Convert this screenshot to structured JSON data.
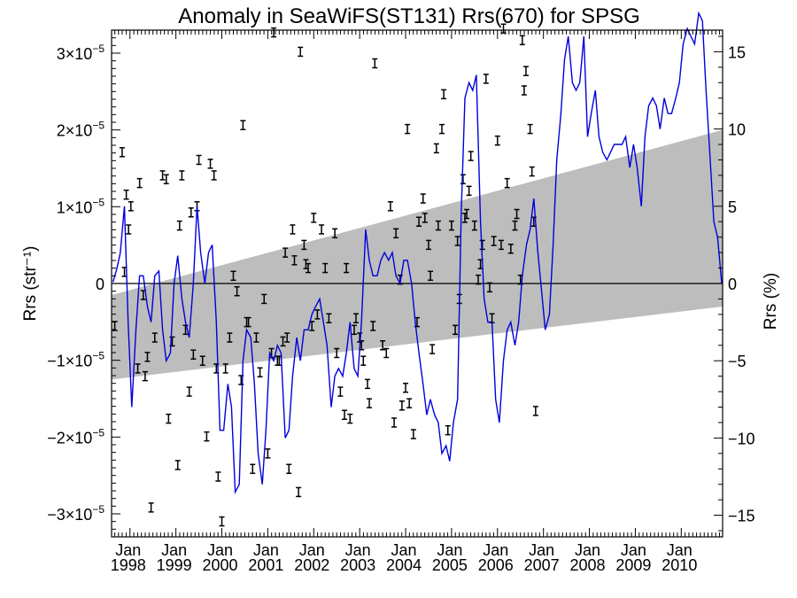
{
  "chart_data": {
    "type": "scatter",
    "title": "Anomaly in SeaWiFS(ST131) Rrs(670) for SPSG",
    "ylabel_left": "Rrs (str⁻¹)",
    "ylabel_right": "Rrs (%)",
    "xlim": [
      1997.6,
      2010.9
    ],
    "ylim": [
      -3.3e-05,
      3.3e-05
    ],
    "ylim_right": [
      -16.4,
      16.4
    ],
    "grid": false,
    "legend": "none",
    "x_tick_labels": [
      {
        "month": "Jan",
        "year": "1998"
      },
      {
        "month": "Jan",
        "year": "1999"
      },
      {
        "month": "Jan",
        "year": "2000"
      },
      {
        "month": "Jan",
        "year": "2001"
      },
      {
        "month": "Jan",
        "year": "2002"
      },
      {
        "month": "Jan",
        "year": "2003"
      },
      {
        "month": "Jan",
        "year": "2004"
      },
      {
        "month": "Jan",
        "year": "2005"
      },
      {
        "month": "Jan",
        "year": "2006"
      },
      {
        "month": "Jan",
        "year": "2007"
      },
      {
        "month": "Jan",
        "year": "2008"
      },
      {
        "month": "Jan",
        "year": "2009"
      },
      {
        "month": "Jan",
        "year": "2010"
      }
    ],
    "y_tick_labels_left": [
      {
        "value": 3e-05,
        "mant": "3×10",
        "exp": "−5"
      },
      {
        "value": 2e-05,
        "mant": "2×10",
        "exp": "−5"
      },
      {
        "value": 1e-05,
        "mant": "1×10",
        "exp": "−5"
      },
      {
        "value": 0,
        "mant": "0",
        "exp": ""
      },
      {
        "value": -1e-05,
        "mant": "−1×10",
        "exp": "−5"
      },
      {
        "value": -2e-05,
        "mant": "−2×10",
        "exp": "−5"
      },
      {
        "value": -3e-05,
        "mant": "−3×10",
        "exp": "−5"
      }
    ],
    "y_tick_labels_right": [
      "15",
      "10",
      "5",
      "0",
      "−5",
      "−10",
      "−15"
    ],
    "trend_band": {
      "x": [
        1997.6,
        2010.9
      ],
      "upper": [
        -1.5e-06,
        2e-05
      ],
      "lower": [
        -1.25e-05,
        -3e-06
      ]
    },
    "zero_line": 0,
    "series": [
      {
        "type": "line",
        "color": "#0000dd",
        "x": [
          1997.63,
          1997.71,
          1997.79,
          1997.88,
          1997.96,
          1998.04,
          1998.13,
          1998.21,
          1998.29,
          1998.38,
          1998.46,
          1998.54,
          1998.63,
          1998.71,
          1998.79,
          1998.88,
          1998.96,
          1999.04,
          1999.13,
          1999.21,
          1999.29,
          1999.38,
          1999.46,
          1999.54,
          1999.63,
          1999.71,
          1999.79,
          1999.88,
          1999.96,
          2000.04,
          2000.13,
          2000.21,
          2000.29,
          2000.38,
          2000.46,
          2000.54,
          2000.63,
          2000.71,
          2000.79,
          2000.88,
          2000.96,
          2001.04,
          2001.13,
          2001.21,
          2001.29,
          2001.38,
          2001.46,
          2001.54,
          2001.63,
          2001.71,
          2001.79,
          2001.88,
          2001.96,
          2002.04,
          2002.13,
          2002.21,
          2002.29,
          2002.38,
          2002.46,
          2002.54,
          2002.63,
          2002.71,
          2002.79,
          2002.88,
          2002.96,
          2003.04,
          2003.13,
          2003.21,
          2003.29,
          2003.38,
          2003.46,
          2003.54,
          2003.63,
          2003.71,
          2003.79,
          2003.88,
          2003.96,
          2004.04,
          2004.13,
          2004.21,
          2004.29,
          2004.38,
          2004.46,
          2004.54,
          2004.63,
          2004.71,
          2004.79,
          2004.88,
          2004.96,
          2005.04,
          2005.13,
          2005.21,
          2005.29,
          2005.38,
          2005.46,
          2005.54,
          2005.63,
          2005.71,
          2005.79,
          2005.88,
          2005.96,
          2006.04,
          2006.13,
          2006.21,
          2006.29,
          2006.38,
          2006.46,
          2006.54,
          2006.63,
          2006.71,
          2006.79,
          2006.88,
          2006.96,
          2007.04,
          2007.13,
          2007.21,
          2007.29,
          2007.38,
          2007.46,
          2007.54,
          2007.63,
          2007.71,
          2007.79,
          2007.88,
          2007.96,
          2008.04,
          2008.13,
          2008.21,
          2008.29,
          2008.38,
          2008.46,
          2008.54,
          2008.63,
          2008.71,
          2008.79,
          2008.88,
          2008.96,
          2009.04,
          2009.13,
          2009.21,
          2009.29,
          2009.38,
          2009.46,
          2009.54,
          2009.63,
          2009.71,
          2009.79,
          2009.88,
          2009.96,
          2010.04,
          2010.13,
          2010.21,
          2010.29,
          2010.38,
          2010.46,
          2010.54,
          2010.63,
          2010.71,
          2010.79,
          2010.88
        ],
        "y": [
          0.1,
          0.9,
          2.0,
          5.0,
          -2.5,
          -8.0,
          -3.0,
          0.5,
          0.5,
          -1.5,
          -2.5,
          0.5,
          0.8,
          -3.0,
          -5.0,
          -4.5,
          0.0,
          1.8,
          -1.0,
          -2.5,
          -3.5,
          0.0,
          5.0,
          2.0,
          0.0,
          2.0,
          2.5,
          -2.5,
          -9.5,
          -9.5,
          -6.5,
          -8.0,
          -13.5,
          -13.0,
          -5.0,
          -3.0,
          -3.5,
          -6.5,
          -11.0,
          -13.0,
          -9.5,
          -4.5,
          -5.0,
          -4.0,
          -4.5,
          -10.0,
          -9.5,
          -6.0,
          -3.5,
          -5.0,
          -3.0,
          -3.0,
          -2.0,
          -1.5,
          -1.0,
          -2.5,
          -4.0,
          -8.0,
          -6.0,
          -5.5,
          -6.0,
          -4.5,
          -2.5,
          -5.5,
          -6.0,
          -2.5,
          3.5,
          1.5,
          0.5,
          0.5,
          1.5,
          2.0,
          1.5,
          2.0,
          0.5,
          0.0,
          1.5,
          1.5,
          0.0,
          -2.5,
          -4.5,
          -6.5,
          -8.5,
          -7.5,
          -8.5,
          -9.0,
          -11.0,
          -10.5,
          -11.5,
          -9.0,
          -7.5,
          4.5,
          12.0,
          13.0,
          12.5,
          13.5,
          4.0,
          -1.0,
          -2.5,
          -2.5,
          -7.5,
          -9.0,
          -5.0,
          -3.0,
          -2.5,
          -4.0,
          -2.5,
          0.5,
          2.5,
          3.5,
          5.5,
          2.0,
          -0.5,
          -3.0,
          -2.0,
          2.5,
          8.0,
          11.0,
          14.5,
          16.0,
          13.0,
          12.5,
          13.0,
          16.0,
          9.5,
          11.0,
          12.5,
          9.5,
          8.5,
          8.0,
          8.5,
          9.0,
          9.0,
          9.0,
          9.5,
          7.5,
          9.0,
          7.5,
          5.0,
          9.5,
          11.5,
          12.0,
          11.5,
          10.0,
          12.0,
          11.0,
          11.0,
          12.0,
          13.0,
          15.5,
          16.5,
          16.0,
          15.5,
          17.5,
          17.0,
          12.5,
          8.0,
          4.0,
          3.0,
          0.0
        ]
      },
      {
        "type": "errorbar-points",
        "color": "#000000",
        "points": [
          [
            1997.67,
            -0.55
          ],
          [
            1997.83,
            1.7
          ],
          [
            1997.88,
            0.15
          ],
          [
            1997.92,
            1.15
          ],
          [
            1997.97,
            0.7
          ],
          [
            1998.02,
            1.0
          ],
          [
            1998.17,
            -1.1
          ],
          [
            1998.21,
            1.3
          ],
          [
            1998.29,
            -0.15
          ],
          [
            1998.33,
            -1.2
          ],
          [
            1998.38,
            -0.95
          ],
          [
            1998.46,
            -2.9
          ],
          [
            1998.54,
            -0.7
          ],
          [
            1998.71,
            1.4
          ],
          [
            1998.79,
            1.35
          ],
          [
            1998.84,
            -1.75
          ],
          [
            1998.92,
            -0.75
          ],
          [
            1999.04,
            -2.35
          ],
          [
            1999.08,
            0.75
          ],
          [
            1999.13,
            1.4
          ],
          [
            1999.21,
            -0.6
          ],
          [
            1999.29,
            -1.4
          ],
          [
            1999.33,
            0.92
          ],
          [
            1999.38,
            -0.92
          ],
          [
            1999.46,
            1.0
          ],
          [
            1999.5,
            1.6
          ],
          [
            1999.58,
            -1.0
          ],
          [
            1999.67,
            -1.98
          ],
          [
            1999.75,
            1.55
          ],
          [
            1999.83,
            1.4
          ],
          [
            1999.88,
            -1.1
          ],
          [
            1999.92,
            -2.5
          ],
          [
            2000.0,
            -3.08
          ],
          [
            2000.08,
            -1.1
          ],
          [
            2000.17,
            -0.7
          ],
          [
            2000.25,
            0.1
          ],
          [
            2000.33,
            -0.1
          ],
          [
            2000.42,
            -1.25
          ],
          [
            2000.46,
            2.05
          ],
          [
            2000.54,
            -0.5
          ],
          [
            2000.58,
            -0.5
          ],
          [
            2000.67,
            -2.4
          ],
          [
            2000.75,
            -0.7
          ],
          [
            2000.83,
            -1.15
          ],
          [
            2000.92,
            -0.2
          ],
          [
            2001.0,
            -2.2
          ],
          [
            2001.08,
            -0.9
          ],
          [
            2001.13,
            3.25
          ],
          [
            2001.21,
            -1.0
          ],
          [
            2001.25,
            -1.0
          ],
          [
            2001.33,
            -0.75
          ],
          [
            2001.38,
            0.4
          ],
          [
            2001.42,
            -0.7
          ],
          [
            2001.46,
            -2.4
          ],
          [
            2001.54,
            0.7
          ],
          [
            2001.58,
            0.3
          ],
          [
            2001.67,
            -2.7
          ],
          [
            2001.71,
            3.0
          ],
          [
            2001.79,
            0.5
          ],
          [
            2001.83,
            0.25
          ],
          [
            2001.88,
            0.2
          ],
          [
            2001.96,
            -0.55
          ],
          [
            2002.0,
            0.85
          ],
          [
            2002.08,
            -0.4
          ],
          [
            2002.17,
            0.7
          ],
          [
            2002.25,
            0.2
          ],
          [
            2002.33,
            -0.45
          ],
          [
            2002.46,
            0.65
          ],
          [
            2002.5,
            -0.9
          ],
          [
            2002.58,
            -1.4
          ],
          [
            2002.67,
            -1.7
          ],
          [
            2002.71,
            0.2
          ],
          [
            2002.79,
            -1.75
          ],
          [
            2002.88,
            -0.6
          ],
          [
            2002.92,
            -0.45
          ],
          [
            2003.0,
            -0.7
          ],
          [
            2003.04,
            -0.8
          ],
          [
            2003.08,
            -1.0
          ],
          [
            2003.17,
            -1.3
          ],
          [
            2003.21,
            -1.55
          ],
          [
            2003.29,
            -0.55
          ],
          [
            2003.33,
            2.85
          ],
          [
            2003.5,
            -0.8
          ],
          [
            2003.58,
            -0.9
          ],
          [
            2003.67,
            1.0
          ],
          [
            2003.75,
            -1.8
          ],
          [
            2003.79,
            0.65
          ],
          [
            2003.88,
            0.05
          ],
          [
            2003.92,
            -1.58
          ],
          [
            2004.0,
            -1.35
          ],
          [
            2004.04,
            2.0
          ],
          [
            2004.08,
            -1.55
          ],
          [
            2004.17,
            -1.95
          ],
          [
            2004.25,
            -0.5
          ],
          [
            2004.29,
            0.8
          ],
          [
            2004.38,
            1.1
          ],
          [
            2004.42,
            0.85
          ],
          [
            2004.5,
            0.5
          ],
          [
            2004.54,
            0.1
          ],
          [
            2004.58,
            -0.85
          ],
          [
            2004.67,
            1.75
          ],
          [
            2004.71,
            0.75
          ],
          [
            2004.79,
            2.0
          ],
          [
            2004.83,
            2.45
          ],
          [
            2004.92,
            -1.9
          ],
          [
            2005.0,
            0.75
          ],
          [
            2005.08,
            -0.6
          ],
          [
            2005.13,
            0.55
          ],
          [
            2005.17,
            -0.2
          ],
          [
            2005.25,
            1.35
          ],
          [
            2005.29,
            0.85
          ],
          [
            2005.33,
            0.9
          ],
          [
            2005.38,
            1.2
          ],
          [
            2005.42,
            1.65
          ],
          [
            2005.5,
            0.75
          ],
          [
            2005.58,
            0.05
          ],
          [
            2005.63,
            0.25
          ],
          [
            2005.67,
            0.5
          ],
          [
            2005.75,
            2.65
          ],
          [
            2005.83,
            -0.05
          ],
          [
            2005.88,
            -0.45
          ],
          [
            2005.92,
            0.55
          ],
          [
            2006.0,
            1.85
          ],
          [
            2006.08,
            0.5
          ],
          [
            2006.13,
            3.3
          ],
          [
            2006.21,
            1.3
          ],
          [
            2006.29,
            0.45
          ],
          [
            2006.38,
            0.75
          ],
          [
            2006.42,
            0.9
          ],
          [
            2006.5,
            0.05
          ],
          [
            2006.54,
            3.15
          ],
          [
            2006.58,
            2.5
          ],
          [
            2006.62,
            2.75
          ],
          [
            2006.71,
            2.0
          ],
          [
            2006.75,
            1.45
          ],
          [
            2006.79,
            0.8
          ],
          [
            2006.83,
            -1.65
          ]
        ]
      }
    ]
  }
}
